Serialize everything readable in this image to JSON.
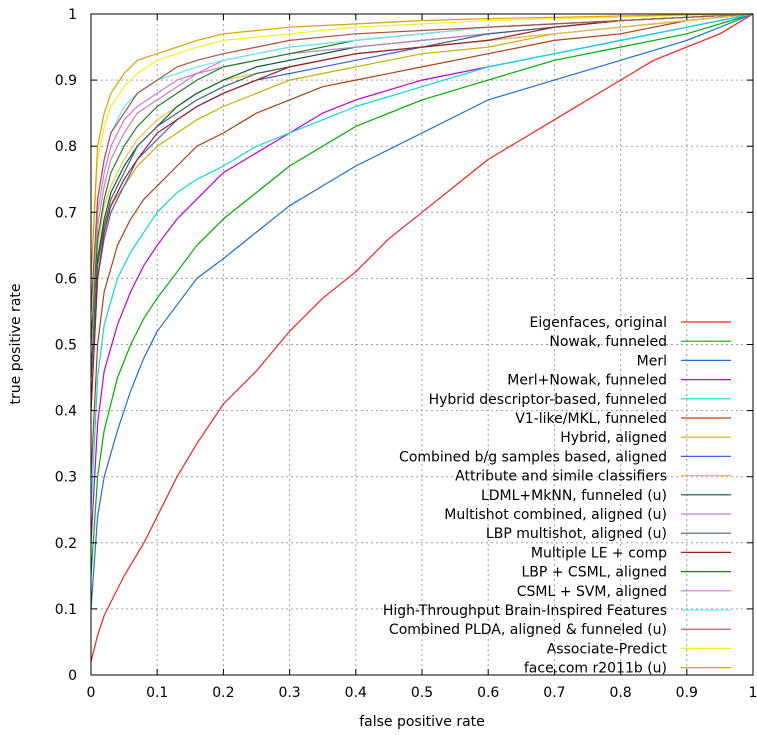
{
  "chart_data": {
    "type": "line",
    "title": "",
    "xlabel": "false positive rate",
    "ylabel": "true positive rate",
    "xlim": [
      0,
      1
    ],
    "ylim": [
      0,
      1
    ],
    "xticks": [
      "0",
      "0.1",
      "0.2",
      "0.3",
      "0.4",
      "0.5",
      "0.6",
      "0.7",
      "0.8",
      "0.9",
      "1"
    ],
    "yticks": [
      "0",
      "0.1",
      "0.2",
      "0.3",
      "0.4",
      "0.5",
      "0.6",
      "0.7",
      "0.8",
      "0.9",
      "1"
    ],
    "grid": true,
    "legend_position": "bottom-right",
    "series": [
      {
        "name": "Eigenfaces, original",
        "color": "#ff2020",
        "x": [
          0,
          0.01,
          0.02,
          0.05,
          0.08,
          0.1,
          0.13,
          0.16,
          0.2,
          0.25,
          0.3,
          0.35,
          0.4,
          0.45,
          0.5,
          0.55,
          0.6,
          0.65,
          0.7,
          0.75,
          0.8,
          0.85,
          0.9,
          0.95,
          1
        ],
        "y": [
          0.02,
          0.06,
          0.09,
          0.15,
          0.2,
          0.24,
          0.3,
          0.35,
          0.41,
          0.46,
          0.52,
          0.57,
          0.61,
          0.66,
          0.7,
          0.74,
          0.78,
          0.81,
          0.84,
          0.87,
          0.9,
          0.93,
          0.95,
          0.97,
          1
        ]
      },
      {
        "name": "Nowak, funneled",
        "color": "#00b000",
        "x": [
          0,
          0.01,
          0.02,
          0.04,
          0.06,
          0.08,
          0.1,
          0.13,
          0.16,
          0.2,
          0.25,
          0.3,
          0.35,
          0.4,
          0.5,
          0.6,
          0.7,
          0.8,
          0.9,
          1
        ],
        "y": [
          0.15,
          0.3,
          0.37,
          0.45,
          0.5,
          0.54,
          0.57,
          0.61,
          0.65,
          0.69,
          0.73,
          0.77,
          0.8,
          0.83,
          0.87,
          0.9,
          0.93,
          0.95,
          0.97,
          1
        ]
      },
      {
        "name": "Merl",
        "color": "#1c70d8",
        "x": [
          0,
          0.01,
          0.02,
          0.04,
          0.06,
          0.08,
          0.1,
          0.13,
          0.16,
          0.2,
          0.25,
          0.3,
          0.35,
          0.4,
          0.5,
          0.6,
          0.7,
          0.8,
          0.9,
          1
        ],
        "y": [
          0.1,
          0.24,
          0.3,
          0.37,
          0.43,
          0.48,
          0.52,
          0.56,
          0.6,
          0.63,
          0.67,
          0.71,
          0.74,
          0.77,
          0.82,
          0.87,
          0.9,
          0.93,
          0.96,
          1
        ]
      },
      {
        "name": "Merl+Nowak, funneled",
        "color": "#c000e0",
        "x": [
          0,
          0.01,
          0.02,
          0.04,
          0.06,
          0.08,
          0.1,
          0.13,
          0.16,
          0.2,
          0.25,
          0.3,
          0.35,
          0.4,
          0.5,
          0.6,
          0.7,
          0.8,
          0.9,
          1
        ],
        "y": [
          0.2,
          0.38,
          0.46,
          0.53,
          0.58,
          0.62,
          0.65,
          0.69,
          0.72,
          0.76,
          0.79,
          0.82,
          0.85,
          0.87,
          0.9,
          0.92,
          0.94,
          0.96,
          0.98,
          1
        ]
      },
      {
        "name": "Hybrid descriptor-based, funneled",
        "color": "#00e0e0",
        "x": [
          0,
          0.01,
          0.02,
          0.04,
          0.06,
          0.08,
          0.1,
          0.13,
          0.16,
          0.2,
          0.25,
          0.3,
          0.35,
          0.4,
          0.5,
          0.6,
          0.7,
          0.8,
          0.9,
          1
        ],
        "y": [
          0.25,
          0.45,
          0.53,
          0.6,
          0.64,
          0.67,
          0.7,
          0.73,
          0.75,
          0.77,
          0.8,
          0.82,
          0.84,
          0.86,
          0.89,
          0.92,
          0.94,
          0.96,
          0.98,
          1
        ]
      },
      {
        "name": "V1-like/MKL, funneled",
        "color": "#b04010",
        "x": [
          0,
          0.01,
          0.02,
          0.04,
          0.06,
          0.08,
          0.1,
          0.13,
          0.16,
          0.2,
          0.25,
          0.3,
          0.35,
          0.4,
          0.5,
          0.6,
          0.7,
          0.8,
          0.9,
          1
        ],
        "y": [
          0.3,
          0.5,
          0.58,
          0.65,
          0.69,
          0.72,
          0.74,
          0.77,
          0.8,
          0.82,
          0.85,
          0.87,
          0.89,
          0.9,
          0.92,
          0.94,
          0.96,
          0.97,
          0.99,
          1
        ]
      },
      {
        "name": "Hybrid, aligned",
        "color": "#c8b000",
        "x": [
          0,
          0.01,
          0.02,
          0.03,
          0.05,
          0.07,
          0.1,
          0.13,
          0.16,
          0.2,
          0.25,
          0.3,
          0.4,
          0.5,
          0.6,
          0.7,
          0.8,
          0.9,
          1
        ],
        "y": [
          0.45,
          0.62,
          0.68,
          0.71,
          0.74,
          0.77,
          0.8,
          0.82,
          0.84,
          0.86,
          0.88,
          0.9,
          0.92,
          0.94,
          0.95,
          0.97,
          0.98,
          0.99,
          1
        ]
      },
      {
        "name": "Combined b/g samples based, aligned",
        "color": "#4060e0",
        "x": [
          0,
          0.01,
          0.02,
          0.03,
          0.05,
          0.07,
          0.1,
          0.13,
          0.16,
          0.2,
          0.25,
          0.3,
          0.4,
          0.5,
          0.6,
          0.7,
          0.8,
          0.9,
          1
        ],
        "y": [
          0.4,
          0.6,
          0.66,
          0.7,
          0.74,
          0.78,
          0.81,
          0.84,
          0.86,
          0.88,
          0.9,
          0.91,
          0.93,
          0.95,
          0.96,
          0.97,
          0.98,
          0.99,
          1
        ]
      },
      {
        "name": "Attribute and simile classifiers",
        "color": "#f0c040",
        "x": [
          0,
          0.01,
          0.02,
          0.03,
          0.05,
          0.07,
          0.1,
          0.13,
          0.16,
          0.2,
          0.25,
          0.3,
          0.4,
          0.5,
          0.6,
          0.7,
          0.8,
          0.9,
          1
        ],
        "y": [
          0.5,
          0.65,
          0.71,
          0.74,
          0.78,
          0.81,
          0.84,
          0.86,
          0.88,
          0.9,
          0.91,
          0.92,
          0.94,
          0.95,
          0.96,
          0.97,
          0.98,
          0.99,
          1
        ]
      },
      {
        "name": "LDML+MkNN, funneled (u)",
        "color": "#006030",
        "x": [
          0,
          0.01,
          0.02,
          0.03,
          0.05,
          0.07,
          0.1,
          0.13,
          0.16,
          0.2,
          0.25,
          0.3,
          0.4,
          0.5,
          0.6,
          0.7,
          0.8,
          0.9,
          1
        ],
        "y": [
          0.45,
          0.63,
          0.69,
          0.73,
          0.77,
          0.8,
          0.83,
          0.86,
          0.88,
          0.9,
          0.92,
          0.93,
          0.95,
          0.96,
          0.97,
          0.98,
          0.99,
          0.995,
          1
        ]
      },
      {
        "name": "Multishot combined, aligned (u)",
        "color": "#c080d0",
        "x": [
          0,
          0.01,
          0.02,
          0.03,
          0.05,
          0.07,
          0.1,
          0.13,
          0.16,
          0.2,
          0.25,
          0.3,
          0.4,
          0.5,
          0.6,
          0.7,
          0.8,
          0.9,
          1
        ],
        "y": [
          0.5,
          0.68,
          0.74,
          0.78,
          0.82,
          0.85,
          0.87,
          0.89,
          0.91,
          0.92,
          0.93,
          0.94,
          0.95,
          0.96,
          0.97,
          0.98,
          0.99,
          0.995,
          1
        ]
      },
      {
        "name": "LBP multishot, aligned (u)",
        "color": "#406080",
        "x": [
          0,
          0.01,
          0.02,
          0.03,
          0.05,
          0.07,
          0.1,
          0.13,
          0.16,
          0.2,
          0.25,
          0.3,
          0.4,
          0.5,
          0.6,
          0.7,
          0.8,
          0.9,
          1
        ],
        "y": [
          0.45,
          0.62,
          0.68,
          0.72,
          0.76,
          0.8,
          0.83,
          0.85,
          0.87,
          0.89,
          0.91,
          0.92,
          0.94,
          0.95,
          0.97,
          0.98,
          0.99,
          0.995,
          1
        ]
      },
      {
        "name": "Multiple LE + comp",
        "color": "#a02020",
        "x": [
          0,
          0.01,
          0.02,
          0.03,
          0.05,
          0.07,
          0.1,
          0.13,
          0.16,
          0.2,
          0.25,
          0.3,
          0.4,
          0.5,
          0.6,
          0.7,
          0.8,
          0.9,
          1
        ],
        "y": [
          0.4,
          0.6,
          0.67,
          0.71,
          0.75,
          0.78,
          0.82,
          0.84,
          0.86,
          0.88,
          0.9,
          0.92,
          0.94,
          0.95,
          0.96,
          0.98,
          0.99,
          0.995,
          1
        ]
      },
      {
        "name": "LBP + CSML, aligned",
        "color": "#208020",
        "x": [
          0,
          0.01,
          0.02,
          0.03,
          0.05,
          0.07,
          0.1,
          0.13,
          0.16,
          0.2,
          0.25,
          0.3,
          0.4,
          0.5,
          0.6,
          0.7,
          0.8,
          0.9,
          1
        ],
        "y": [
          0.5,
          0.66,
          0.72,
          0.76,
          0.8,
          0.83,
          0.86,
          0.88,
          0.9,
          0.92,
          0.93,
          0.94,
          0.96,
          0.97,
          0.98,
          0.985,
          0.99,
          0.995,
          1
        ]
      },
      {
        "name": "CSML + SVM, aligned",
        "color": "#e070e0",
        "x": [
          0,
          0.01,
          0.02,
          0.03,
          0.05,
          0.07,
          0.1,
          0.13,
          0.16,
          0.2,
          0.25,
          0.3,
          0.4,
          0.5,
          0.6,
          0.7,
          0.8,
          0.9,
          1
        ],
        "y": [
          0.55,
          0.7,
          0.76,
          0.8,
          0.84,
          0.86,
          0.88,
          0.9,
          0.91,
          0.93,
          0.94,
          0.95,
          0.96,
          0.97,
          0.98,
          0.985,
          0.99,
          0.995,
          1
        ]
      },
      {
        "name": "High-Throughput Brain-Inspired Features",
        "color": "#60f0f0",
        "x": [
          0,
          0.01,
          0.02,
          0.03,
          0.05,
          0.07,
          0.1,
          0.13,
          0.16,
          0.2,
          0.25,
          0.3,
          0.4,
          0.5,
          0.6,
          0.7,
          0.8,
          0.9,
          1
        ],
        "y": [
          0.55,
          0.72,
          0.78,
          0.82,
          0.86,
          0.88,
          0.9,
          0.91,
          0.92,
          0.93,
          0.94,
          0.95,
          0.96,
          0.97,
          0.98,
          0.985,
          0.99,
          0.995,
          1
        ]
      },
      {
        "name": "Combined PLDA, aligned & funneled (u)",
        "color": "#b05040",
        "x": [
          0,
          0.01,
          0.02,
          0.03,
          0.05,
          0.07,
          0.1,
          0.13,
          0.16,
          0.2,
          0.25,
          0.3,
          0.4,
          0.5,
          0.6,
          0.7,
          0.8,
          0.9,
          1
        ],
        "y": [
          0.55,
          0.72,
          0.78,
          0.82,
          0.85,
          0.88,
          0.9,
          0.92,
          0.93,
          0.94,
          0.95,
          0.96,
          0.97,
          0.975,
          0.98,
          0.985,
          0.99,
          0.995,
          1
        ]
      },
      {
        "name": "Associate-Predict",
        "color": "#f0f020",
        "x": [
          0,
          0.01,
          0.02,
          0.03,
          0.05,
          0.07,
          0.1,
          0.13,
          0.16,
          0.2,
          0.25,
          0.3,
          0.4,
          0.5,
          0.6,
          0.7,
          0.8,
          0.9,
          1
        ],
        "y": [
          0.6,
          0.78,
          0.83,
          0.86,
          0.89,
          0.91,
          0.93,
          0.94,
          0.95,
          0.96,
          0.965,
          0.97,
          0.98,
          0.985,
          0.99,
          0.993,
          0.995,
          0.998,
          1
        ]
      },
      {
        "name": "face.com r2011b (u)",
        "color": "#e0a000",
        "x": [
          0,
          0.01,
          0.02,
          0.03,
          0.05,
          0.07,
          0.1,
          0.13,
          0.16,
          0.2,
          0.25,
          0.3,
          0.4,
          0.5,
          0.6,
          0.7,
          0.8,
          0.9,
          1
        ],
        "y": [
          0.6,
          0.8,
          0.85,
          0.88,
          0.91,
          0.93,
          0.94,
          0.95,
          0.96,
          0.97,
          0.975,
          0.98,
          0.985,
          0.99,
          0.993,
          0.995,
          0.997,
          0.999,
          1
        ]
      }
    ]
  }
}
